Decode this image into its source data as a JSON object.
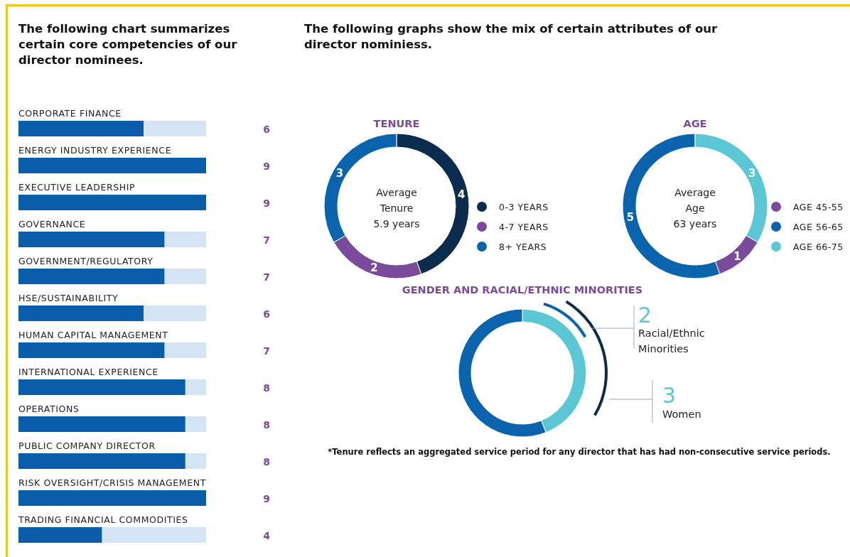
{
  "chart_data": [
    {
      "type": "bar",
      "orientation": "horizontal",
      "title": "The following chart summarizes certain core competencies of our director nominees.",
      "categories": [
        "CORPORATE FINANCE",
        "ENERGY INDUSTRY EXPERIENCE",
        "EXECUTIVE LEADERSHIP",
        "GOVERNANCE",
        "GOVERNMENT/REGULATORY",
        "HSE/SUSTAINABILITY",
        "HUMAN CAPITAL MANAGEMENT",
        "INTERNATIONAL EXPERIENCE",
        "OPERATIONS",
        "PUBLIC COMPANY DIRECTOR",
        "RISK OVERSIGHT/CRISIS MANAGEMENT",
        "TRADING FINANCIAL COMMODITIES"
      ],
      "values": [
        6,
        9,
        9,
        7,
        7,
        6,
        7,
        8,
        8,
        8,
        9,
        4
      ],
      "color": "#0a5da8",
      "xlim": [
        0,
        9
      ],
      "tick_labels": false,
      "data_labels": true
    },
    {
      "type": "donut",
      "title": "TENURE",
      "categories": [
        "0-3 YEARS",
        "4-7 YEARS",
        "8+ YEARS"
      ],
      "values": [
        4,
        2,
        3
      ],
      "colors": [
        "#0c2c4e",
        "#7a4a9c",
        "#0a64ad"
      ],
      "data_labels": true,
      "legend": "right",
      "annotations": [
        "The following graphs show the mix of certain attributes of our director nominiess.",
        "Average\nTenure\n5.9 years"
      ]
    },
    {
      "type": "donut",
      "title": "AGE",
      "categories": [
        "AGE 45-55",
        "AGE 56-65",
        "AGE 66-75"
      ],
      "values": [
        1,
        5,
        3
      ],
      "colors": [
        "#7a4a9c",
        "#0a64ad",
        "#5bc6d4"
      ],
      "data_labels": true,
      "legend": "right",
      "annotations": [
        "Average\nAge\n63 years"
      ]
    },
    {
      "type": "donut",
      "title": "GENDER AND RACIAL/ETHNIC MINORITIES",
      "categories": [
        null,
        null
      ],
      "values": [
        44,
        56
      ],
      "colors": [
        "#5bc6d4",
        "#0a64ad"
      ],
      "legend": false,
      "annotations": [
        "2",
        "Racial/Ethnic\nMinorities",
        "3",
        "Women",
        "*Tenure reflects an aggregated service period for any director that has had non-consecutive service periods."
      ]
    }
  ]
}
